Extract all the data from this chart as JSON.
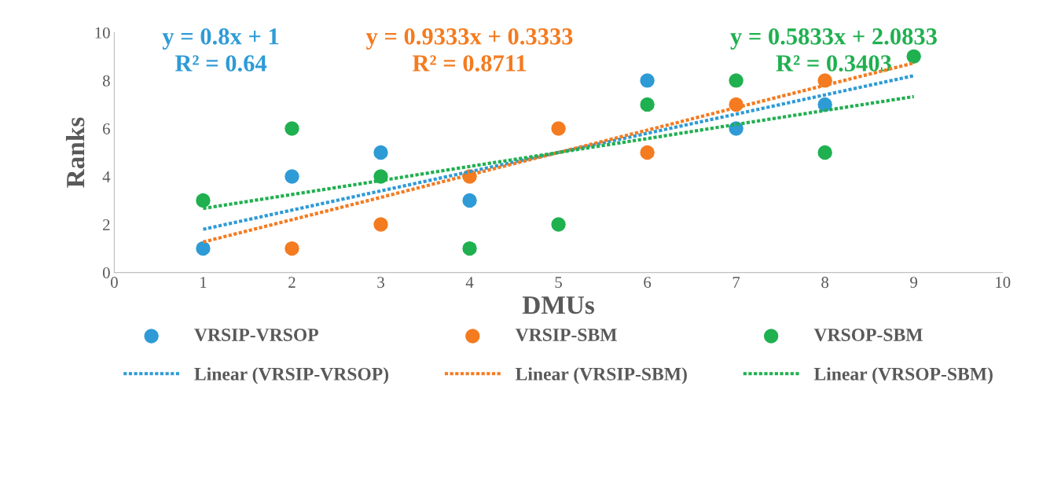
{
  "chart_data": {
    "type": "scatter",
    "xlabel": "DMUs",
    "ylabel": "Ranks",
    "x": [
      1,
      2,
      3,
      4,
      5,
      6,
      7,
      8,
      9
    ],
    "series": [
      {
        "name": "VRSIP-VRSOP",
        "color": "#2e9bd6",
        "values": [
          1,
          4,
          5,
          3,
          null,
          8,
          6,
          7,
          null
        ]
      },
      {
        "name": "VRSIP-SBM",
        "color": "#f47b20",
        "values": [
          null,
          1,
          2,
          4,
          6,
          5,
          7,
          8,
          null
        ]
      },
      {
        "name": "VRSOP-SBM",
        "color": "#1fb04f",
        "values": [
          3,
          6,
          4,
          1,
          2,
          7,
          8,
          5,
          9
        ]
      },
      {
        "name": "Linear (VRSIP-VRSOP)",
        "type": "line",
        "marker": "none",
        "line_style": "dotted",
        "color": "#2e9bd6",
        "values": [
          1.8,
          2.6,
          3.4,
          4.2,
          5.0,
          5.8,
          6.6,
          7.4,
          8.2
        ]
      },
      {
        "name": "Linear (VRSIP-SBM)",
        "type": "line",
        "marker": "none",
        "line_style": "dotted",
        "color": "#f47b20",
        "values": [
          1.27,
          2.2,
          3.13,
          4.07,
          5.0,
          5.93,
          6.87,
          7.8,
          8.73
        ]
      },
      {
        "name": "Linear (VRSOP-SBM)",
        "type": "line",
        "marker": "none",
        "line_style": "dotted",
        "color": "#1fb04f",
        "values": [
          2.67,
          3.25,
          3.83,
          4.42,
          5.0,
          5.58,
          6.17,
          6.75,
          7.33
        ]
      }
    ],
    "xlim": [
      0,
      10
    ],
    "xticks": [
      0,
      1,
      2,
      3,
      4,
      5,
      6,
      7,
      8,
      9,
      10
    ],
    "ylim": [
      0,
      10
    ],
    "yticks": [
      0,
      2,
      4,
      6,
      8,
      10
    ],
    "marker": "circle",
    "grid": false,
    "legend": "bottom",
    "annotations": [
      "y = 0.8x + 1\nR² = 0.64",
      "y = 0.9333x + 0.3333\nR² = 0.8711",
      "y = 0.5833x + 2.0833\nR² = 0.3403"
    ]
  }
}
